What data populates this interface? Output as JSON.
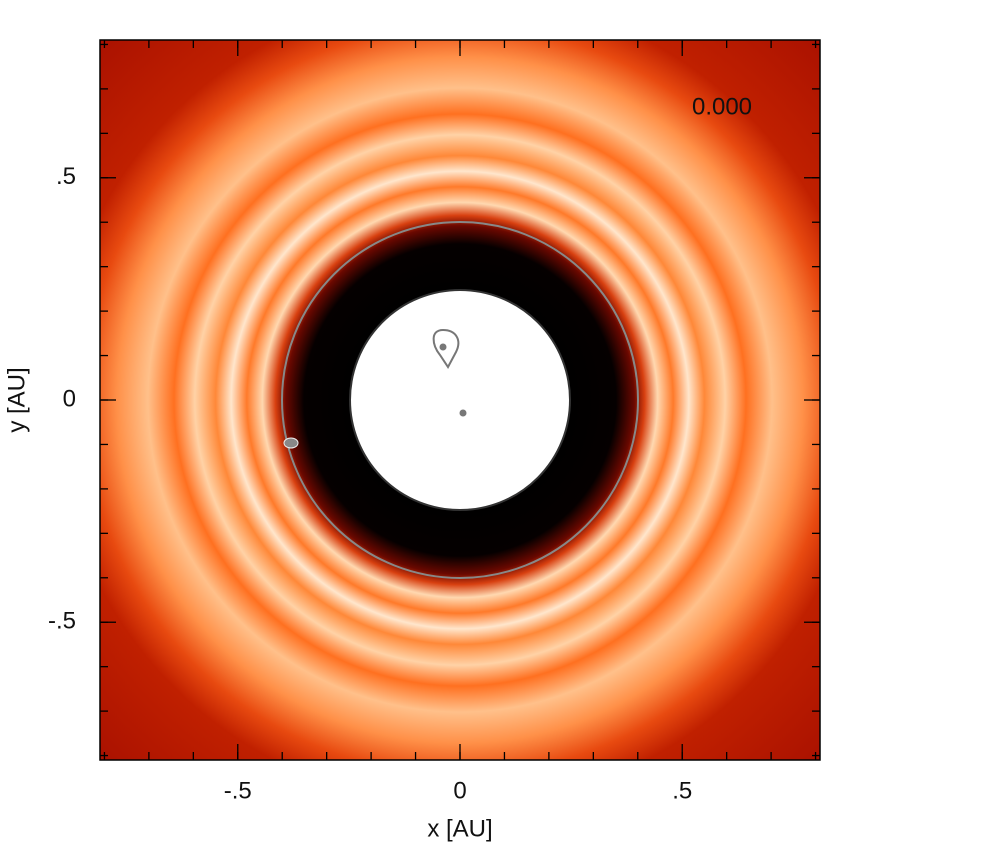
{
  "chart_data": {
    "type": "image",
    "xlabel": "x [AU]",
    "ylabel": "y [AU]",
    "annotation": "0.000",
    "xlim": [
      -0.81,
      0.81
    ],
    "ylim": [
      -0.81,
      0.81
    ],
    "xticks": [
      {
        "value": -0.5,
        "label": "-.5"
      },
      0,
      {
        "value": 0.5,
        "label": ".5"
      }
    ],
    "yticks": [
      {
        "value": -0.5,
        "label": "-.5"
      },
      0,
      {
        "value": 0.5,
        "label": ".5"
      }
    ],
    "minor_ticks": [
      -0.8,
      -0.7,
      -0.6,
      -0.5,
      -0.4,
      -0.3,
      -0.2,
      -0.1,
      0,
      0.1,
      0.2,
      0.3,
      0.4,
      0.5,
      0.6,
      0.7,
      0.8
    ]
  }
}
